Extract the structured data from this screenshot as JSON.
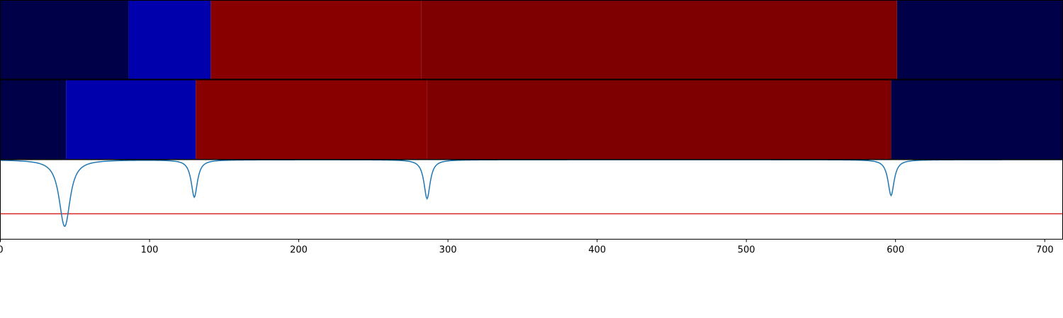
{
  "chart_data": {
    "type": "heatmap",
    "xlim": [
      0,
      712
    ],
    "xticks": [
      0,
      100,
      200,
      300,
      400,
      500,
      600,
      700
    ],
    "xtick_labels": [
      "0",
      "100",
      "200",
      "300",
      "400",
      "500",
      "600",
      "700"
    ],
    "grid": false,
    "legend": "none",
    "strips": [
      {
        "segments": [
          {
            "start": 0,
            "end": 86,
            "color": "#000048"
          },
          {
            "start": 86,
            "end": 141,
            "color": "#0000ad"
          },
          {
            "start": 141,
            "end": 282,
            "color": "#880000"
          },
          {
            "start": 282,
            "end": 601,
            "color": "#7f0000"
          },
          {
            "start": 601,
            "end": 712,
            "color": "#000048"
          }
        ]
      },
      {
        "segments": [
          {
            "start": 0,
            "end": 44,
            "color": "#000048"
          },
          {
            "start": 44,
            "end": 131,
            "color": "#0000ad"
          },
          {
            "start": 131,
            "end": 286,
            "color": "#880000"
          },
          {
            "start": 286,
            "end": 597,
            "color": "#7f0000"
          },
          {
            "start": 597,
            "end": 712,
            "color": "#000048"
          }
        ]
      }
    ],
    "line_panel": {
      "ylim": [
        0,
        1
      ],
      "baseline": 1.0,
      "threshold": 0.32,
      "threshold_color": "#d62728",
      "line_color": "#1f77b4",
      "dips": [
        {
          "x": 42,
          "min": 0.6,
          "width": 4
        },
        {
          "x": 44,
          "min": 0.51,
          "width": 4
        },
        {
          "x": 130,
          "min": 0.53,
          "width": 2.5
        },
        {
          "x": 286,
          "min": 0.51,
          "width": 2.5
        },
        {
          "x": 597,
          "min": 0.55,
          "width": 2.5
        }
      ]
    }
  }
}
